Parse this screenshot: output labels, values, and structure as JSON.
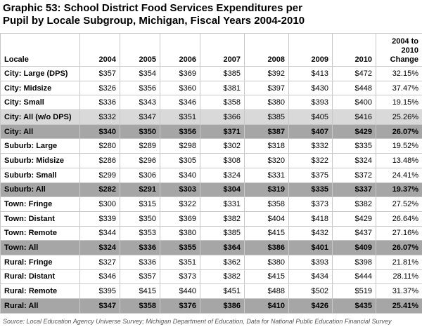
{
  "title": "Graphic 53: School District Food Services Expenditures per Pupil by Locale Subgroup, Michigan, Fiscal Years 2004-2010",
  "table": {
    "header": [
      "Locale",
      "2004",
      "2005",
      "2006",
      "2007",
      "2008",
      "2009",
      "2010",
      "2004 to 2010 Change"
    ],
    "rows": [
      [
        "City: Large (DPS)",
        "$357",
        "$354",
        "$369",
        "$385",
        "$392",
        "$413",
        "$472",
        "32.15%"
      ],
      [
        "City: Midsize",
        "$326",
        "$356",
        "$360",
        "$381",
        "$397",
        "$430",
        "$448",
        "37.47%"
      ],
      [
        "City: Small",
        "$336",
        "$343",
        "$346",
        "$358",
        "$380",
        "$393",
        "$400",
        "19.15%"
      ],
      [
        "City: All (w/o DPS)",
        "$332",
        "$347",
        "$351",
        "$366",
        "$385",
        "$405",
        "$416",
        "25.26%"
      ],
      [
        "City: All",
        "$340",
        "$350",
        "$356",
        "$371",
        "$387",
        "$407",
        "$429",
        "26.07%"
      ],
      [
        "Suburb: Large",
        "$280",
        "$289",
        "$298",
        "$302",
        "$318",
        "$332",
        "$335",
        "19.52%"
      ],
      [
        "Suburb: Midsize",
        "$286",
        "$296",
        "$305",
        "$308",
        "$320",
        "$322",
        "$324",
        "13.48%"
      ],
      [
        "Suburb: Small",
        "$299",
        "$306",
        "$340",
        "$324",
        "$331",
        "$375",
        "$372",
        "24.41%"
      ],
      [
        "Suburb: All",
        "$282",
        "$291",
        "$303",
        "$304",
        "$319",
        "$335",
        "$337",
        "19.37%"
      ],
      [
        "Town: Fringe",
        "$300",
        "$315",
        "$322",
        "$331",
        "$358",
        "$373",
        "$382",
        "27.52%"
      ],
      [
        "Town: Distant",
        "$339",
        "$350",
        "$369",
        "$382",
        "$404",
        "$418",
        "$429",
        "26.64%"
      ],
      [
        "Town: Remote",
        "$344",
        "$353",
        "$380",
        "$385",
        "$415",
        "$432",
        "$437",
        "27.16%"
      ],
      [
        "Town: All",
        "$324",
        "$336",
        "$355",
        "$364",
        "$386",
        "$401",
        "$409",
        "26.07%"
      ],
      [
        "Rural: Fringe",
        "$327",
        "$336",
        "$351",
        "$362",
        "$380",
        "$393",
        "$398",
        "21.81%"
      ],
      [
        "Rural: Distant",
        "$346",
        "$357",
        "$373",
        "$382",
        "$415",
        "$434",
        "$444",
        "28.11%"
      ],
      [
        "Rural: Remote",
        "$395",
        "$415",
        "$440",
        "$451",
        "$488",
        "$502",
        "$519",
        "31.37%"
      ],
      [
        "Rural: All",
        "$347",
        "$358",
        "$376",
        "$386",
        "$410",
        "$426",
        "$435",
        "25.41%"
      ]
    ]
  },
  "source": "Source: Local Education Agency Universe Survey; Michigan Department of Education, Data for National Public Education Financial Survey"
}
